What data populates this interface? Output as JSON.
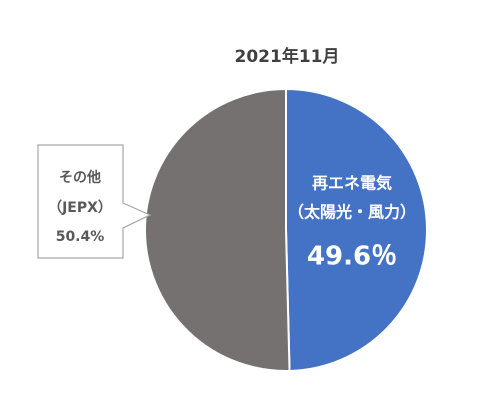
{
  "chart_data": {
    "type": "pie",
    "title": "2021年11月",
    "categories": [
      [
        "再エネ電気",
        "（太陽光・風力）"
      ],
      [
        "その他",
        "（JEPX）"
      ]
    ],
    "values": [
      49.6,
      50.4
    ],
    "value_labels": [
      "49.6％",
      "50.4%"
    ],
    "colors": [
      "#4472c4",
      "#767171"
    ]
  }
}
